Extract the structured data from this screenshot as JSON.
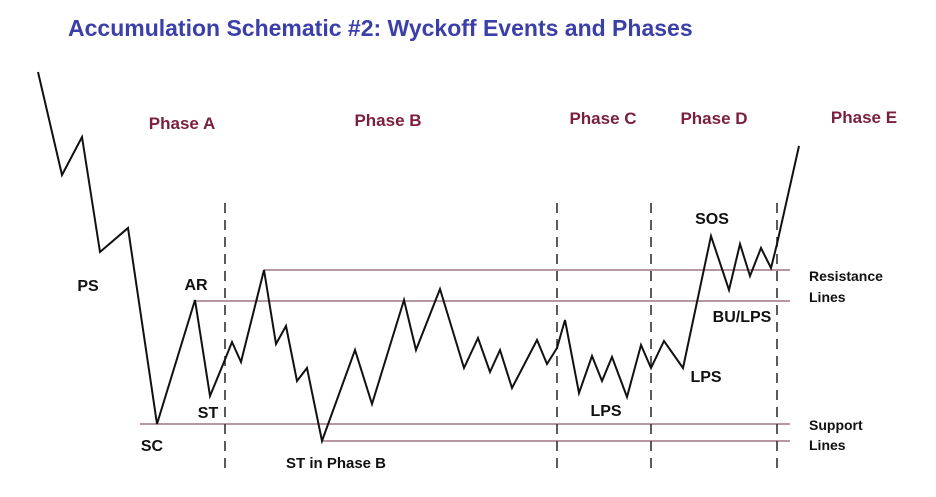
{
  "title": "Accumulation Schematic #2: Wyckoff Events and Phases",
  "colors": {
    "title": "#3b3fa8",
    "phase": "#7a1f3d",
    "lines": "#8c5a6a",
    "price": "#111111",
    "text": "#111111"
  },
  "phases": [
    "Phase A",
    "Phase B",
    "Phase C",
    "Phase D",
    "Phase E"
  ],
  "events": {
    "ps": "PS",
    "sc": "SC",
    "ar": "AR",
    "st": "ST",
    "st_phase_b": "ST in Phase B",
    "lps_c": "LPS",
    "lps_d": "LPS",
    "sos": "SOS",
    "bu_lps": "BU/LPS"
  },
  "line_labels": {
    "resistance_1": "Resistance",
    "resistance_2": "Lines",
    "support_1": "Support",
    "support_2": "Lines"
  }
}
